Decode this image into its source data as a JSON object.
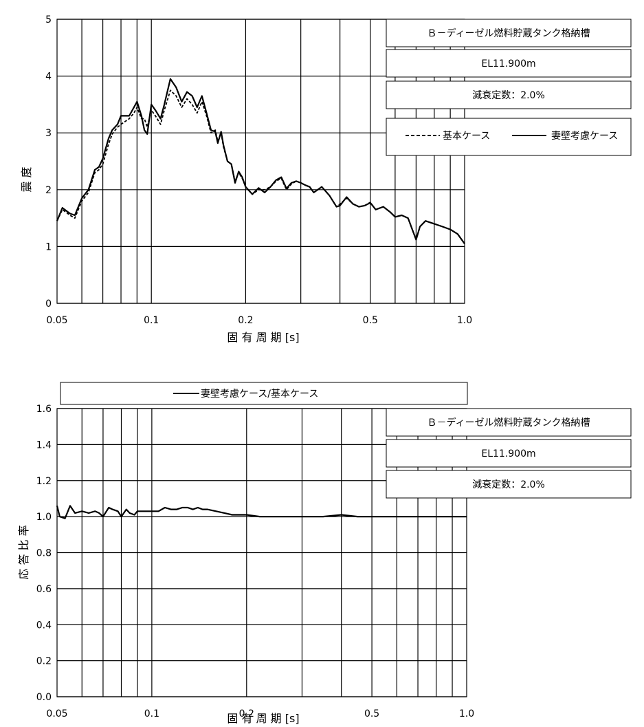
{
  "chart_data": [
    {
      "type": "line",
      "xscale": "log",
      "xlim": [
        0.05,
        1.0
      ],
      "ylim": [
        0,
        5
      ],
      "xticks": [
        0.05,
        0.1,
        0.2,
        0.5,
        1.0
      ],
      "xtick_labels": [
        "0.05",
        "0.1",
        "0.2",
        "0.5",
        "1.0"
      ],
      "yticks": [
        0,
        1,
        2,
        3,
        4,
        5
      ],
      "ytick_labels": [
        "0",
        "1",
        "2",
        "3",
        "4",
        "5"
      ],
      "xlabel": "固 有 周 期 [s]",
      "ylabel": "震 度",
      "grid": true,
      "info_labels": [
        "Ｂ－ディーゼル燃料貯蔵タンク格納槽",
        "EL11.900m",
        "減衰定数：2.0%"
      ],
      "series": [
        {
          "name": "基本ケース",
          "style": "dashed",
          "color": "#000000",
          "x": [
            0.05,
            0.052,
            0.055,
            0.057,
            0.06,
            0.063,
            0.066,
            0.068,
            0.07,
            0.073,
            0.075,
            0.078,
            0.08,
            0.085,
            0.088,
            0.09,
            0.093,
            0.095,
            0.097,
            0.1,
            0.103,
            0.107,
            0.11,
            0.115,
            0.12,
            0.125,
            0.13,
            0.135,
            0.14,
            0.145,
            0.15,
            0.155,
            0.16,
            0.163,
            0.167,
            0.17,
            0.175,
            0.18,
            0.185,
            0.19,
            0.195,
            0.2,
            0.21,
            0.22,
            0.23,
            0.24,
            0.25,
            0.26,
            0.27,
            0.28,
            0.29,
            0.3,
            0.31,
            0.32,
            0.33,
            0.35,
            0.37,
            0.39,
            0.4,
            0.42,
            0.44,
            0.46,
            0.48,
            0.5,
            0.52,
            0.55,
            0.58,
            0.6,
            0.63,
            0.66,
            0.7,
            0.72,
            0.75,
            0.8,
            0.85,
            0.9,
            0.95,
            1.0
          ],
          "y": [
            1.45,
            1.65,
            1.55,
            1.5,
            1.8,
            1.95,
            2.3,
            2.35,
            2.45,
            2.8,
            2.98,
            3.1,
            3.15,
            3.25,
            3.35,
            3.45,
            3.25,
            3.25,
            3.1,
            3.4,
            3.3,
            3.15,
            3.4,
            3.75,
            3.65,
            3.45,
            3.6,
            3.5,
            3.35,
            3.55,
            3.3,
            3.0,
            3.05,
            2.85,
            3.0,
            2.75,
            2.5,
            2.45,
            2.15,
            2.3,
            2.2,
            2.05,
            1.92,
            2.0,
            2.0,
            2.05,
            2.15,
            2.2,
            2.0,
            2.1,
            2.15,
            2.12,
            2.08,
            2.05,
            1.95,
            2.05,
            1.9,
            1.7,
            1.75,
            1.85,
            1.75,
            1.7,
            1.72,
            1.78,
            1.65,
            1.7,
            1.6,
            1.52,
            1.55,
            1.5,
            1.12,
            1.35,
            1.45,
            1.4,
            1.35,
            1.3,
            1.22,
            1.05
          ]
        },
        {
          "name": "妻壁考慮ケース",
          "style": "solid",
          "color": "#000000",
          "x": [
            0.05,
            0.052,
            0.055,
            0.057,
            0.06,
            0.063,
            0.066,
            0.068,
            0.07,
            0.073,
            0.075,
            0.078,
            0.08,
            0.085,
            0.088,
            0.09,
            0.093,
            0.095,
            0.097,
            0.1,
            0.103,
            0.107,
            0.11,
            0.115,
            0.12,
            0.125,
            0.13,
            0.135,
            0.14,
            0.145,
            0.15,
            0.155,
            0.16,
            0.163,
            0.167,
            0.17,
            0.175,
            0.18,
            0.185,
            0.19,
            0.195,
            0.2,
            0.21,
            0.22,
            0.23,
            0.24,
            0.25,
            0.26,
            0.27,
            0.28,
            0.29,
            0.3,
            0.31,
            0.32,
            0.33,
            0.35,
            0.37,
            0.39,
            0.4,
            0.42,
            0.44,
            0.46,
            0.48,
            0.5,
            0.52,
            0.55,
            0.58,
            0.6,
            0.63,
            0.66,
            0.7,
            0.72,
            0.75,
            0.8,
            0.85,
            0.9,
            0.95,
            1.0
          ],
          "y": [
            1.45,
            1.68,
            1.58,
            1.55,
            1.85,
            2.0,
            2.35,
            2.4,
            2.55,
            2.9,
            3.05,
            3.15,
            3.3,
            3.3,
            3.45,
            3.55,
            3.3,
            3.05,
            2.98,
            3.5,
            3.4,
            3.25,
            3.5,
            3.95,
            3.8,
            3.55,
            3.72,
            3.65,
            3.45,
            3.65,
            3.35,
            3.05,
            3.02,
            2.82,
            3.02,
            2.78,
            2.5,
            2.45,
            2.12,
            2.32,
            2.22,
            2.05,
            1.92,
            2.03,
            1.95,
            2.05,
            2.17,
            2.22,
            2.02,
            2.12,
            2.15,
            2.12,
            2.08,
            2.05,
            1.95,
            2.05,
            1.9,
            1.7,
            1.72,
            1.87,
            1.75,
            1.7,
            1.72,
            1.77,
            1.65,
            1.7,
            1.6,
            1.52,
            1.55,
            1.5,
            1.12,
            1.35,
            1.45,
            1.4,
            1.35,
            1.3,
            1.22,
            1.05
          ]
        }
      ]
    },
    {
      "type": "line",
      "xscale": "log",
      "xlim": [
        0.05,
        1.0
      ],
      "ylim": [
        0,
        1.6
      ],
      "xticks": [
        0.05,
        0.1,
        0.2,
        0.5,
        1.0
      ],
      "xtick_labels": [
        "0.05",
        "0.1",
        "0.2",
        "0.5",
        "1.0"
      ],
      "yticks": [
        0,
        0.2,
        0.4,
        0.6,
        0.8,
        1.0,
        1.2,
        1.4,
        1.6
      ],
      "ytick_labels": [
        "0.0",
        "0.2",
        "0.4",
        "0.6",
        "0.8",
        "1.0",
        "1.2",
        "1.4",
        "1.6"
      ],
      "xlabel": "固 有 周 期 [s]",
      "ylabel": "応 答 比 率",
      "grid": true,
      "info_labels": [
        "Ｂ－ディーゼル燃料貯蔵タンク格納槽",
        "EL11.900m",
        "減衰定数：2.0%"
      ],
      "series": [
        {
          "name": "妻壁考慮ケース/基本ケース",
          "style": "solid",
          "color": "#000000",
          "x": [
            0.05,
            0.051,
            0.053,
            0.055,
            0.057,
            0.06,
            0.063,
            0.066,
            0.068,
            0.07,
            0.073,
            0.075,
            0.078,
            0.08,
            0.083,
            0.085,
            0.088,
            0.09,
            0.093,
            0.095,
            0.1,
            0.105,
            0.11,
            0.115,
            0.12,
            0.125,
            0.13,
            0.135,
            0.14,
            0.145,
            0.15,
            0.16,
            0.17,
            0.18,
            0.19,
            0.2,
            0.22,
            0.25,
            0.3,
            0.35,
            0.4,
            0.45,
            0.5,
            0.55,
            0.6,
            0.7,
            0.8,
            0.9,
            1.0
          ],
          "y": [
            1.06,
            1.0,
            0.99,
            1.06,
            1.02,
            1.03,
            1.02,
            1.03,
            1.02,
            1.0,
            1.05,
            1.04,
            1.03,
            1.0,
            1.04,
            1.02,
            1.01,
            1.03,
            1.03,
            1.03,
            1.03,
            1.03,
            1.05,
            1.04,
            1.04,
            1.05,
            1.05,
            1.04,
            1.05,
            1.04,
            1.04,
            1.03,
            1.02,
            1.01,
            1.01,
            1.01,
            1.0,
            1.0,
            1.0,
            1.0,
            1.01,
            1.0,
            1.0,
            1.0,
            1.0,
            1.0,
            1.0,
            1.0,
            1.0
          ]
        }
      ]
    }
  ]
}
